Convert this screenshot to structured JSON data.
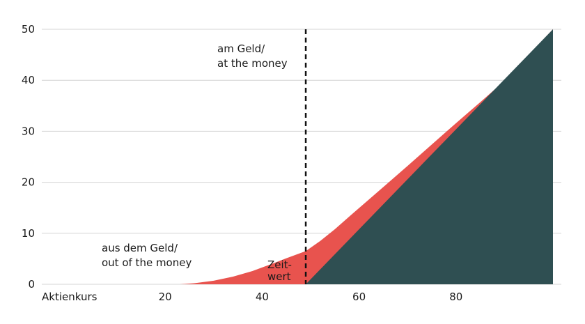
{
  "chart_data": {
    "type": "area",
    "xlabel": "Aktienkurs",
    "ylabel": "",
    "xlim": [
      0,
      100
    ],
    "ylim": [
      0,
      50
    ],
    "x_ticks": [
      20,
      40,
      60,
      80
    ],
    "y_ticks": [
      0,
      10,
      20,
      30,
      40,
      50
    ],
    "grid": true,
    "strike_line": {
      "x": 49
    },
    "series": [
      {
        "role": "option-value",
        "color": "#e8534e",
        "x": [
          23,
          26,
          30,
          34,
          38,
          42,
          45,
          49,
          52,
          55,
          58,
          62,
          66,
          70,
          75,
          80,
          85,
          90,
          95,
          100
        ],
        "y": [
          0,
          0.2,
          0.7,
          1.5,
          2.6,
          4.0,
          5.1,
          6.5,
          8.5,
          10.8,
          13.3,
          16.6,
          19.9,
          23.2,
          27.4,
          31.6,
          35.7,
          39.9,
          45.0,
          50.0
        ]
      },
      {
        "role": "intrinsic-value",
        "color": "#2f4f52",
        "x": [
          49,
          100
        ],
        "y": [
          0,
          50
        ]
      }
    ],
    "annotations": {
      "atm_line1": "am Geld/",
      "atm_line2": "at the money",
      "otm_line1": "aus dem Geld/",
      "otm_line2": "out of the money",
      "time_line1": "Zeit-",
      "time_line2": "wert"
    }
  }
}
